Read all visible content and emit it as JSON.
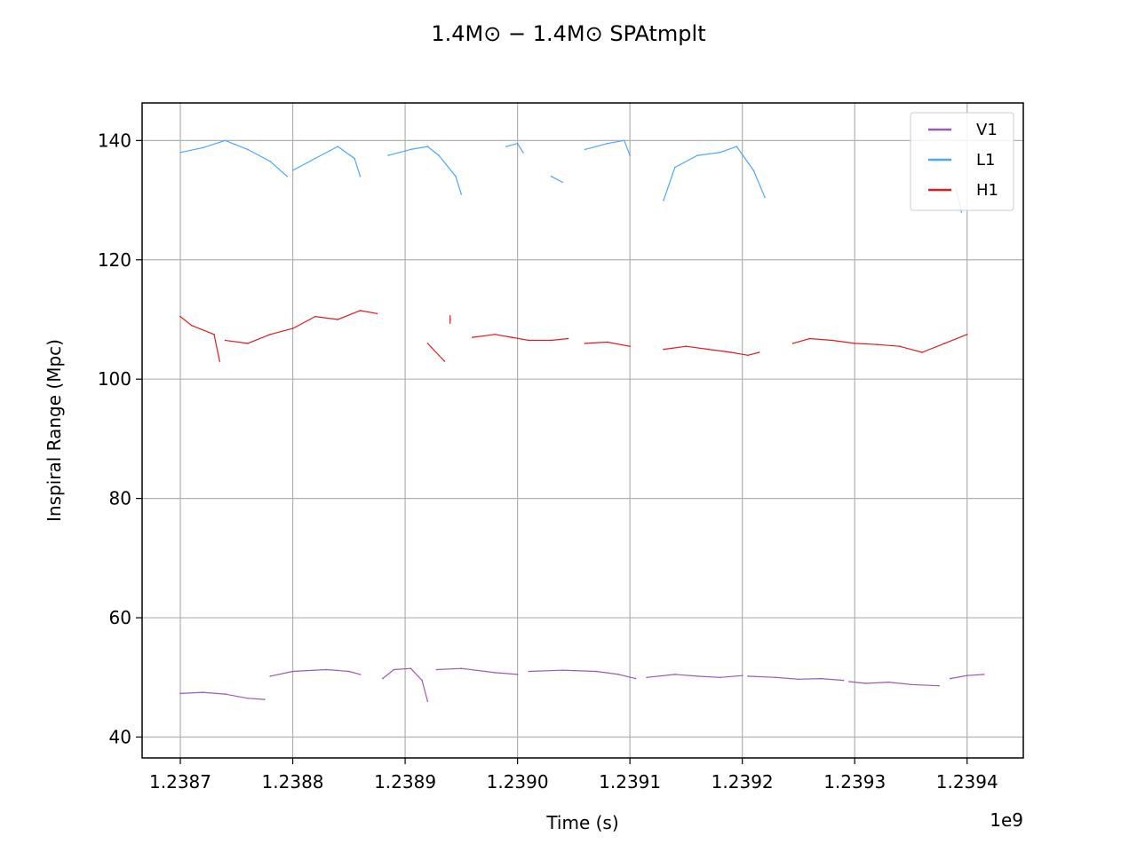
{
  "chart_data": {
    "type": "line",
    "title": "1.4M⊙ − 1.4M⊙ SPAtmplt",
    "xlabel": "Time (s)",
    "ylabel": "Inspiral Range (Mpc)",
    "x_offset_label": "1e9",
    "xlim": [
      1238666000,
      1239450000
    ],
    "ylim": [
      36.5,
      146.3
    ],
    "x_ticks": [
      1238700000,
      1238800000,
      1238900000,
      1239000000,
      1239100000,
      1239200000,
      1239300000,
      1239400000
    ],
    "x_tick_labels": [
      "1.2387",
      "1.2388",
      "1.2389",
      "1.2390",
      "1.2391",
      "1.2392",
      "1.2393",
      "1.2394"
    ],
    "y_ticks": [
      40,
      60,
      80,
      100,
      120,
      140
    ],
    "y_tick_labels": [
      "40",
      "60",
      "80",
      "100",
      "120",
      "140"
    ],
    "grid": true,
    "legend_position": "top-right",
    "series": [
      {
        "name": "V1",
        "color": "#9b59b6",
        "segments": [
          [
            [
              1238700000,
              47.3
            ],
            [
              1238720000,
              47.5
            ],
            [
              1238740000,
              47.2
            ],
            [
              1238760000,
              46.5
            ],
            [
              1238775000,
              46.3
            ]
          ],
          [
            [
              1238780000,
              50.2
            ],
            [
              1238800000,
              51.0
            ],
            [
              1238830000,
              51.3
            ],
            [
              1238850000,
              51.0
            ],
            [
              1238860000,
              50.5
            ]
          ],
          [
            [
              1238880000,
              49.8
            ],
            [
              1238890000,
              51.3
            ],
            [
              1238905000,
              51.5
            ],
            [
              1238915000,
              49.5
            ],
            [
              1238920000,
              46.0
            ]
          ],
          [
            [
              1238928000,
              51.3
            ],
            [
              1238950000,
              51.5
            ],
            [
              1238980000,
              50.8
            ],
            [
              1239000000,
              50.5
            ]
          ],
          [
            [
              1239010000,
              51.0
            ],
            [
              1239040000,
              51.2
            ],
            [
              1239070000,
              51.0
            ],
            [
              1239090000,
              50.5
            ],
            [
              1239105000,
              49.8
            ]
          ],
          [
            [
              1239115000,
              50.0
            ],
            [
              1239140000,
              50.5
            ],
            [
              1239160000,
              50.2
            ],
            [
              1239180000,
              50.0
            ],
            [
              1239200000,
              50.3
            ]
          ],
          [
            [
              1239205000,
              50.2
            ],
            [
              1239230000,
              50.0
            ],
            [
              1239250000,
              49.7
            ],
            [
              1239270000,
              49.8
            ],
            [
              1239290000,
              49.5
            ]
          ],
          [
            [
              1239295000,
              49.3
            ],
            [
              1239310000,
              49.0
            ],
            [
              1239330000,
              49.2
            ],
            [
              1239350000,
              48.8
            ],
            [
              1239375000,
              48.6
            ]
          ],
          [
            [
              1239385000,
              49.8
            ],
            [
              1239400000,
              50.3
            ],
            [
              1239415000,
              50.5
            ]
          ]
        ]
      },
      {
        "name": "L1",
        "color": "#4da6ff",
        "segments": [
          [
            [
              1238700000,
              138.0
            ],
            [
              1238720000,
              138.8
            ],
            [
              1238740000,
              140.0
            ],
            [
              1238760000,
              138.5
            ],
            [
              1238780000,
              136.5
            ],
            [
              1238795000,
              134.0
            ]
          ],
          [
            [
              1238800000,
              135.0
            ],
            [
              1238820000,
              137.0
            ],
            [
              1238840000,
              139.0
            ],
            [
              1238855000,
              137.0
            ],
            [
              1238860000,
              134.0
            ]
          ],
          [
            [
              1238885000,
              137.5
            ],
            [
              1238905000,
              138.5
            ],
            [
              1238920000,
              139.0
            ],
            [
              1238930000,
              137.5
            ],
            [
              1238945000,
              134.0
            ],
            [
              1238950000,
              131.0
            ]
          ],
          [
            [
              1238990000,
              139.0
            ],
            [
              1239000000,
              139.5
            ],
            [
              1239005000,
              138.0
            ]
          ],
          [
            [
              1239030000,
              134.0
            ],
            [
              1239040000,
              133.0
            ]
          ],
          [
            [
              1239060000,
              138.5
            ],
            [
              1239080000,
              139.5
            ],
            [
              1239095000,
              140.0
            ],
            [
              1239100000,
              137.5
            ]
          ],
          [
            [
              1239130000,
              130.0
            ],
            [
              1239140000,
              135.5
            ],
            [
              1239160000,
              137.5
            ],
            [
              1239180000,
              138.0
            ],
            [
              1239195000,
              139.0
            ],
            [
              1239210000,
              135.0
            ],
            [
              1239220000,
              130.5
            ]
          ],
          [
            [
              1239390000,
              132.0
            ],
            [
              1239395000,
              128.0
            ]
          ]
        ]
      },
      {
        "name": "H1",
        "color": "#e31a1c",
        "segments": [
          [
            [
              1238700000,
              110.5
            ],
            [
              1238710000,
              109.0
            ],
            [
              1238730000,
              107.5
            ],
            [
              1238735000,
              103.0
            ]
          ],
          [
            [
              1238740000,
              106.5
            ],
            [
              1238760000,
              106.0
            ],
            [
              1238780000,
              107.5
            ],
            [
              1238800000,
              108.5
            ],
            [
              1238820000,
              110.5
            ],
            [
              1238840000,
              110.0
            ],
            [
              1238860000,
              111.5
            ],
            [
              1238875000,
              111.0
            ]
          ],
          [
            [
              1238920000,
              106.0
            ],
            [
              1238935000,
              103.0
            ]
          ],
          [
            [
              1238940000,
              110.0
            ]
          ],
          [
            [
              1238960000,
              107.0
            ],
            [
              1238980000,
              107.5
            ],
            [
              1238995000,
              107.0
            ],
            [
              1239010000,
              106.5
            ],
            [
              1239030000,
              106.5
            ],
            [
              1239045000,
              106.8
            ]
          ],
          [
            [
              1239060000,
              106.0
            ],
            [
              1239080000,
              106.2
            ],
            [
              1239100000,
              105.5
            ]
          ],
          [
            [
              1239130000,
              105.0
            ],
            [
              1239150000,
              105.5
            ],
            [
              1239170000,
              105.0
            ],
            [
              1239190000,
              104.5
            ],
            [
              1239205000,
              104.0
            ],
            [
              1239215000,
              104.5
            ]
          ],
          [
            [
              1239245000,
              106.0
            ],
            [
              1239260000,
              106.8
            ],
            [
              1239280000,
              106.5
            ],
            [
              1239300000,
              106.0
            ],
            [
              1239320000,
              105.8
            ],
            [
              1239340000,
              105.5
            ],
            [
              1239360000,
              104.5
            ],
            [
              1239380000,
              106.0
            ],
            [
              1239400000,
              107.5
            ]
          ]
        ]
      }
    ]
  }
}
